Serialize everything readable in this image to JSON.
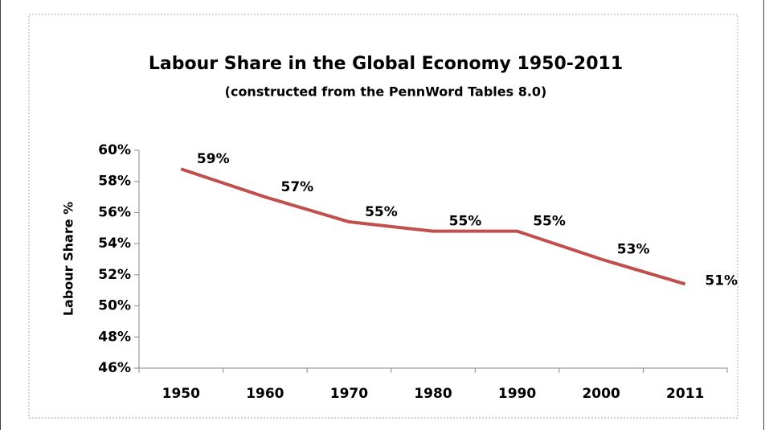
{
  "chart_data": {
    "type": "line",
    "title": "Labour Share  in the Global Economy 1950-2011",
    "subtitle": "(constructed from the PennWord Tables 8.0)",
    "y_label": "Labour Share %",
    "categories": [
      "1950",
      "1960",
      "1970",
      "1980",
      "1990",
      "2000",
      "2011"
    ],
    "series": [
      {
        "name": "Labour Share",
        "color": "#c0504d",
        "values": [
          58.8,
          57.0,
          55.4,
          54.8,
          54.8,
          53.0,
          51.4
        ],
        "value_labels": [
          "59%",
          "57%",
          "55%",
          "55%",
          "55%",
          "53%",
          "51%"
        ]
      }
    ],
    "ylim": [
      46,
      60
    ],
    "yticks": [
      {
        "value": 46,
        "label": "46%"
      },
      {
        "value": 48,
        "label": "48%"
      },
      {
        "value": 50,
        "label": "50%"
      },
      {
        "value": 52,
        "label": "52%"
      },
      {
        "value": 54,
        "label": "54%"
      },
      {
        "value": 56,
        "label": "56%"
      },
      {
        "value": 58,
        "label": "58%"
      },
      {
        "value": 60,
        "label": "60%"
      }
    ],
    "grid": false,
    "legend": false
  }
}
